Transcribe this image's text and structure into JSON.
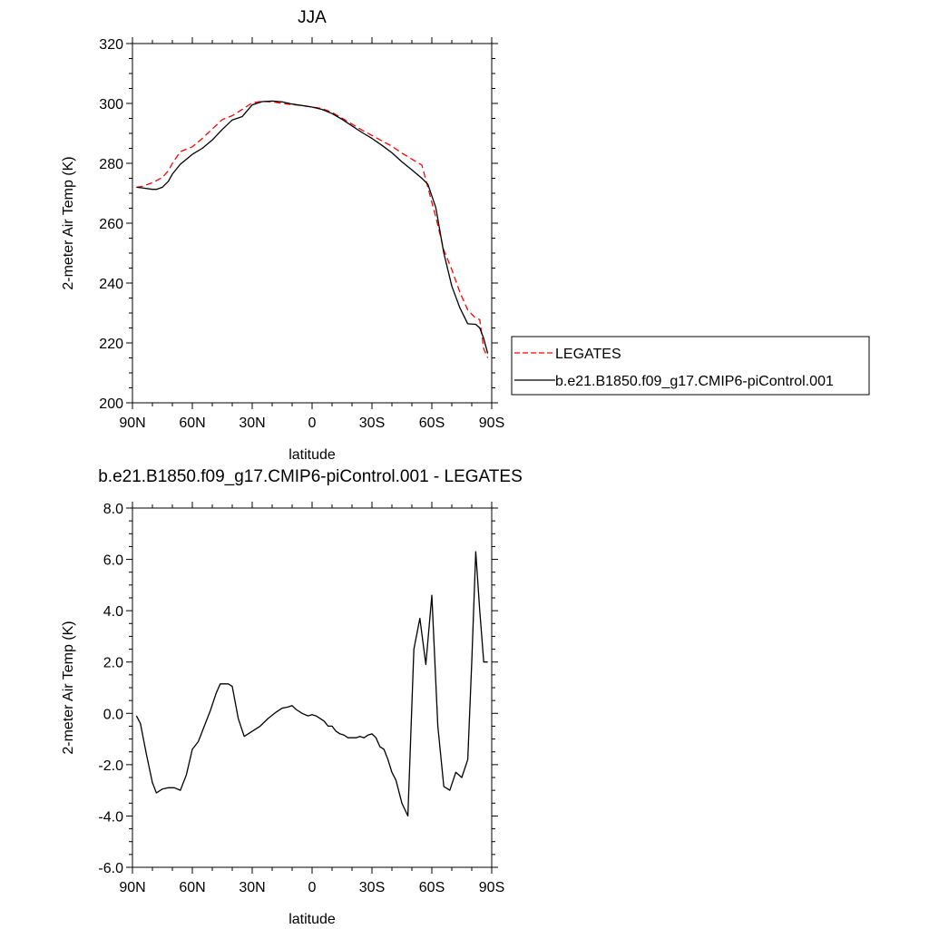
{
  "colors": {
    "legates": "#ff0000",
    "model": "#000000"
  },
  "legend": {
    "items": [
      {
        "label": "LEGATES",
        "color": "#ff0000",
        "style": "dashed"
      },
      {
        "label": "b.e21.B1850.f09_g17.CMIP6-piControl.001",
        "color": "#000000",
        "style": "solid"
      }
    ]
  },
  "chart_data": [
    {
      "type": "line",
      "title": "JJA",
      "xlabel": "latitude",
      "ylabel": "2-meter Air Temp (K)",
      "xlim": [
        90,
        -90
      ],
      "ylim": [
        200,
        320
      ],
      "xticks": [
        90,
        60,
        30,
        0,
        -30,
        -60,
        -90
      ],
      "xtick_labels": [
        "90N",
        "60N",
        "30N",
        "0",
        "30S",
        "60S",
        "90S"
      ],
      "yticks": [
        200,
        220,
        240,
        260,
        280,
        300,
        320
      ],
      "ytick_labels": [
        "200",
        "220",
        "240",
        "260",
        "280",
        "300",
        "320"
      ],
      "grid": false,
      "legend_position": "right",
      "series": [
        {
          "name": "LEGATES",
          "color": "#ff0000",
          "style": "dashed",
          "x": [
            88,
            85,
            80,
            78,
            75,
            72,
            70,
            66,
            60,
            55,
            50,
            45,
            40,
            35,
            30,
            25,
            20,
            15,
            10,
            5,
            0,
            -5,
            -10,
            -15,
            -20,
            -25,
            -30,
            -35,
            -40,
            -45,
            -50,
            -55,
            -58,
            -62,
            -66,
            -70,
            -74,
            -78,
            -82,
            -84,
            -86,
            -88
          ],
          "y": [
            272,
            272.3,
            273.5,
            274.2,
            275.3,
            277.5,
            280,
            283.9,
            285.5,
            288.3,
            291.5,
            294.6,
            295.9,
            298,
            300.2,
            300.7,
            300.5,
            300,
            299.6,
            299.3,
            298.8,
            298.3,
            297,
            295.1,
            293.1,
            291.1,
            289.3,
            287.5,
            285.7,
            283.4,
            281.4,
            279.4,
            272,
            262,
            251,
            244.5,
            237,
            231,
            228.2,
            227.8,
            218,
            215
          ]
        },
        {
          "name": "b.e21.B1850.f09_g17.CMIP6-piControl.001",
          "color": "#000000",
          "style": "solid",
          "x": [
            88,
            85,
            80,
            78,
            75,
            72,
            70,
            66,
            60,
            55,
            50,
            45,
            40,
            35,
            30,
            25,
            20,
            15,
            10,
            5,
            0,
            -5,
            -10,
            -15,
            -20,
            -25,
            -30,
            -35,
            -40,
            -45,
            -50,
            -55,
            -58,
            -62,
            -66,
            -70,
            -74,
            -78,
            -82,
            -84,
            -86,
            -88
          ],
          "y": [
            272,
            271.8,
            271.3,
            271.3,
            272,
            274,
            276.4,
            279.7,
            283,
            285,
            287.8,
            291.3,
            294.5,
            295.6,
            299.5,
            300.6,
            300.8,
            300.5,
            299.8,
            299.3,
            298.8,
            298,
            296.6,
            294.7,
            292.5,
            290.3,
            288.3,
            286,
            283.5,
            280.5,
            277.8,
            275,
            273,
            265.2,
            250,
            239,
            231.8,
            226.4,
            226.2,
            225,
            221.5,
            216.5
          ]
        }
      ]
    },
    {
      "type": "line",
      "title": "b.e21.B1850.f09_g17.CMIP6-piControl.001 - LEGATES",
      "xlabel": "latitude",
      "ylabel": "2-meter Air Temp (K)",
      "xlim": [
        90,
        -90
      ],
      "ylim": [
        -6,
        8
      ],
      "xticks": [
        90,
        60,
        30,
        0,
        -30,
        -60,
        -90
      ],
      "xtick_labels": [
        "90N",
        "60N",
        "30N",
        "0",
        "30S",
        "60S",
        "90S"
      ],
      "yticks": [
        -6,
        -4,
        -2,
        0,
        2,
        4,
        6,
        8
      ],
      "ytick_labels": [
        "-6.0",
        "-4.0",
        "-2.0",
        "0.0",
        "2.0",
        "4.0",
        "6.0",
        "8.0"
      ],
      "grid": false,
      "series": [
        {
          "name": "",
          "color": "#000000",
          "style": "solid",
          "x": [
            88,
            86,
            83,
            80,
            78,
            75,
            72,
            69,
            66,
            63,
            60,
            57,
            54,
            51,
            48,
            46,
            42,
            40,
            37,
            34,
            30,
            26,
            22,
            18,
            15,
            12,
            10,
            8,
            5,
            2,
            0,
            -2,
            -4,
            -6,
            -8,
            -10,
            -12,
            -14,
            -16,
            -18,
            -20,
            -22,
            -24,
            -26,
            -28,
            -30,
            -32,
            -34,
            -36,
            -38,
            -40,
            -42,
            -45,
            -48,
            -51,
            -54,
            -57,
            -60,
            -63,
            -66,
            -69,
            -72,
            -75,
            -78,
            -80,
            -82,
            -84,
            -86,
            -88
          ],
          "y": [
            -0.1,
            -0.4,
            -1.6,
            -2.7,
            -3.1,
            -2.95,
            -2.9,
            -2.9,
            -3.0,
            -2.4,
            -1.4,
            -1.1,
            -0.5,
            0.1,
            0.8,
            1.15,
            1.15,
            1.05,
            -0.2,
            -0.9,
            -0.7,
            -0.5,
            -0.2,
            0.05,
            0.2,
            0.25,
            0.3,
            0.15,
            0.0,
            -0.1,
            -0.05,
            -0.1,
            -0.2,
            -0.3,
            -0.5,
            -0.5,
            -0.7,
            -0.8,
            -0.85,
            -0.95,
            -0.95,
            -0.95,
            -0.9,
            -0.95,
            -0.85,
            -0.8,
            -0.95,
            -1.3,
            -1.4,
            -1.8,
            -2.3,
            -2.6,
            -3.5,
            -4.0,
            2.5,
            3.7,
            1.9,
            4.6,
            -0.5,
            -2.85,
            -3.0,
            -2.3,
            -2.5,
            -1.8,
            2.0,
            6.3,
            4.0,
            2.0,
            2.0
          ]
        }
      ]
    }
  ]
}
